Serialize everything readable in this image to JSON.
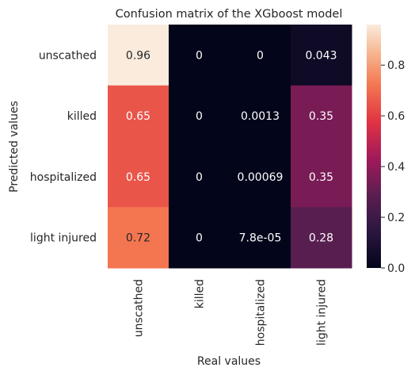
{
  "chart_data": {
    "type": "heatmap",
    "title": "Confusion matrix of the XGboost model",
    "xlabel": "Real values",
    "ylabel": "Predicted values",
    "x_categories": [
      "unscathed",
      "killed",
      "hospitalized",
      "light injured"
    ],
    "y_categories": [
      "unscathed",
      "killed",
      "hospitalized",
      "light injured"
    ],
    "values": [
      [
        0.96,
        0,
        0,
        0.043
      ],
      [
        0.65,
        0,
        0.0013,
        0.35
      ],
      [
        0.65,
        0,
        0.00069,
        0.35
      ],
      [
        0.72,
        0,
        7.8e-05,
        0.28
      ]
    ],
    "annotations": [
      [
        "0.96",
        "0",
        "0",
        "0.043"
      ],
      [
        "0.65",
        "0",
        "0.0013",
        "0.35"
      ],
      [
        "0.65",
        "0",
        "0.00069",
        "0.35"
      ],
      [
        "0.72",
        "0",
        "7.8e-05",
        "0.28"
      ]
    ],
    "colorbar": {
      "range": [
        0,
        0.96
      ],
      "ticks": [
        0.0,
        0.2,
        0.4,
        0.6,
        0.8
      ],
      "tick_labels": [
        "0.0",
        "0.2",
        "0.4",
        "0.6",
        "0.8"
      ],
      "colormap": "rocket"
    },
    "grid": false
  }
}
